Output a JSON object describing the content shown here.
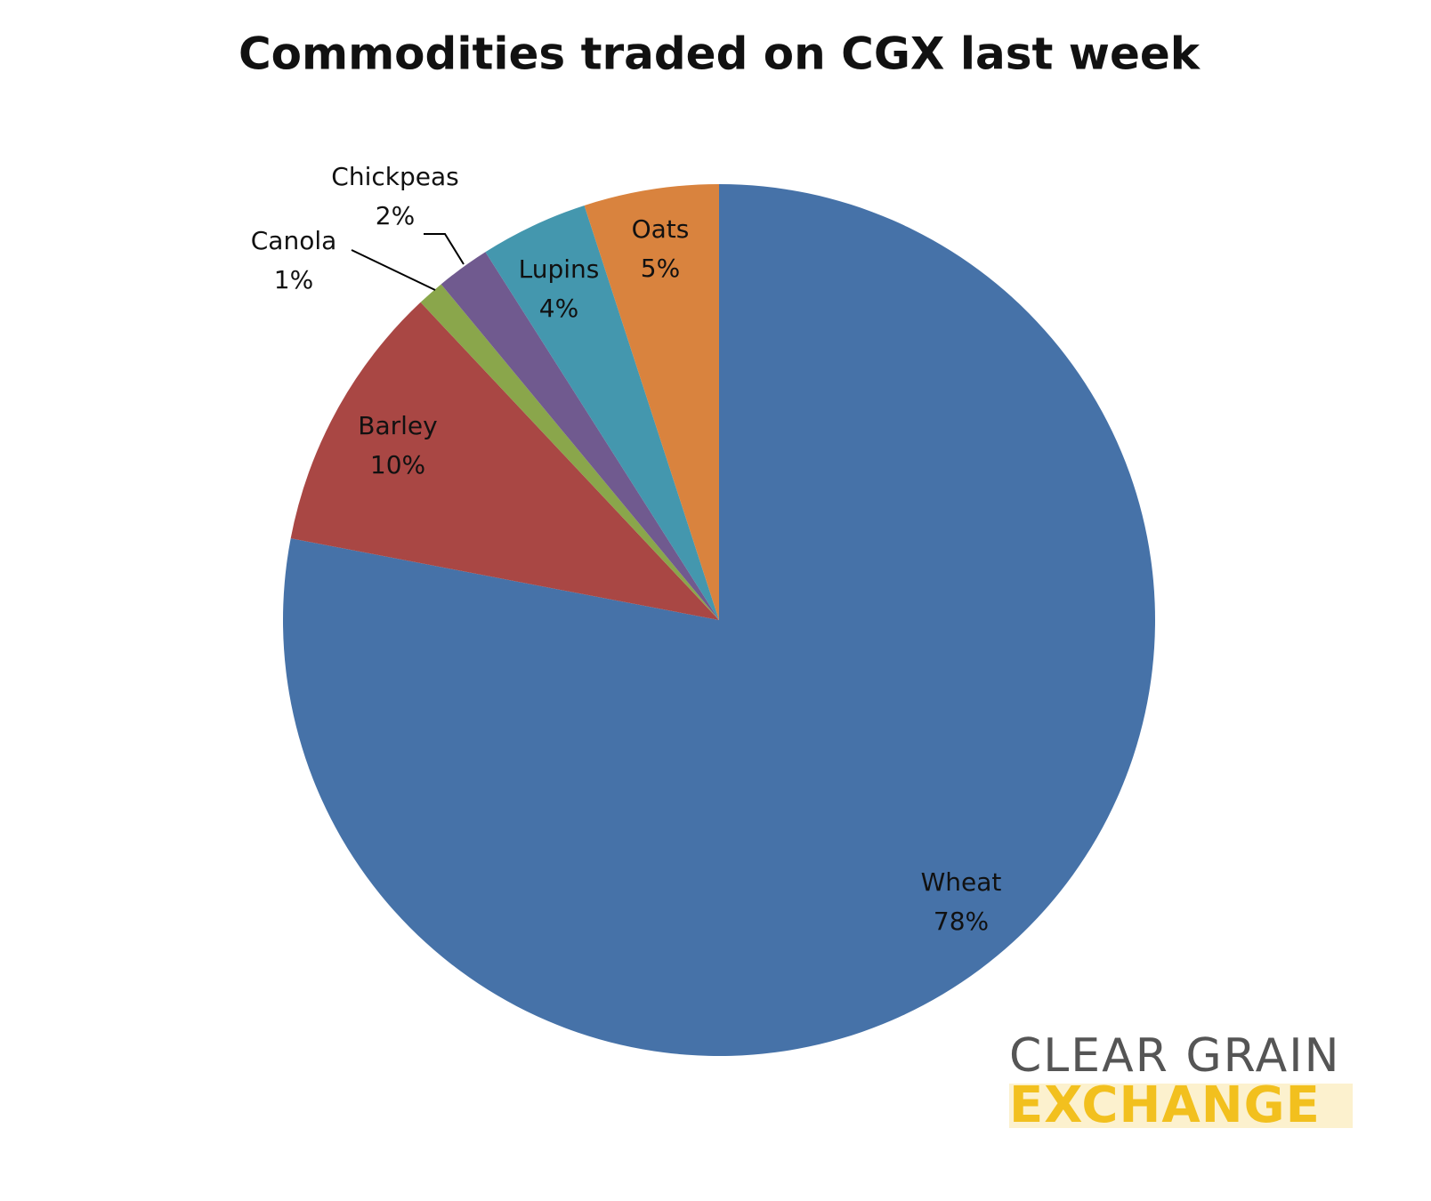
{
  "chart_data": {
    "type": "pie",
    "title": "Commodities traded on CGX last week",
    "categories": [
      "Wheat",
      "Barley",
      "Canola",
      "Chickpeas",
      "Lupins",
      "Oats"
    ],
    "values": [
      78,
      10,
      1,
      2,
      4,
      5
    ],
    "value_labels": [
      "78%",
      "10%",
      "1%",
      "2%",
      "4%",
      "5%"
    ],
    "colors": [
      "#4672a8",
      "#a94744",
      "#8aa64b",
      "#705a8f",
      "#4497ae",
      "#d9833e"
    ]
  },
  "logo": {
    "line1": "CLEAR GRAIN",
    "line2": "EXCHANGE"
  }
}
